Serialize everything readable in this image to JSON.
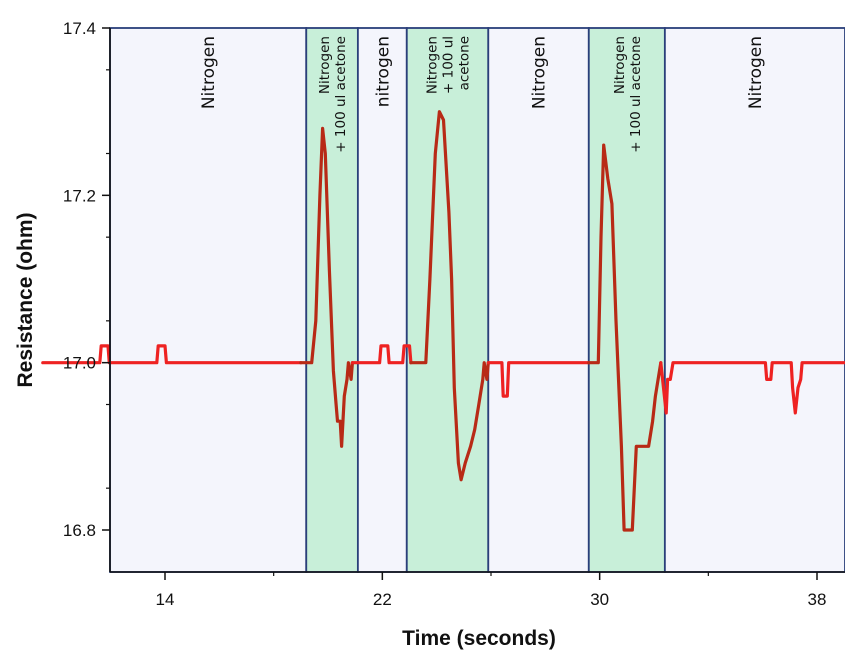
{
  "chart_data": {
    "type": "line",
    "title": "",
    "xlabel": "Time (seconds)",
    "ylabel": "Resistance (ohm)",
    "xlim": [
      9.5,
      40.5
    ],
    "ylim": [
      16.75,
      17.4
    ],
    "x_ticks": [
      14,
      22,
      30,
      38
    ],
    "y_ticks": [
      16.8,
      17.0,
      17.2,
      17.4
    ],
    "grid": false,
    "legend": "none",
    "colors": {
      "nitrogen_bg": "#f4f5fc",
      "acetone_bg": "#c8efd9",
      "border": "#2a3f7a",
      "baseline_line": "#ee2222",
      "pulse_line": "#b82a16"
    },
    "regions": [
      {
        "label": "Nitrogen",
        "x_start": 9.5,
        "x_end": 19.2,
        "kind": "nitrogen"
      },
      {
        "label": "Nitrogen\n+ 100 ul acetone",
        "x_start": 19.2,
        "x_end": 21.1,
        "kind": "acetone"
      },
      {
        "label": "nitrogen",
        "x_start": 21.1,
        "x_end": 22.9,
        "kind": "nitrogen"
      },
      {
        "label": "Nitrogen\n+ 100 ul\nacetone",
        "x_start": 22.9,
        "x_end": 25.9,
        "kind": "acetone"
      },
      {
        "label": "Nitrogen",
        "x_start": 25.9,
        "x_end": 29.6,
        "kind": "nitrogen"
      },
      {
        "label": "Nitrogen\n+ 100 ul acetone",
        "x_start": 29.6,
        "x_end": 32.4,
        "kind": "acetone"
      },
      {
        "label": "Nitrogen",
        "x_start": 32.4,
        "x_end": 40.5,
        "kind": "nitrogen"
      }
    ],
    "series": [
      {
        "values": [
          [
            9.5,
            17.0
          ],
          [
            11.6,
            17.0
          ],
          [
            11.65,
            17.02
          ],
          [
            11.9,
            17.02
          ],
          [
            11.95,
            17.0
          ],
          [
            13.7,
            17.0
          ],
          [
            13.75,
            17.02
          ],
          [
            14.0,
            17.02
          ],
          [
            14.05,
            17.0
          ],
          [
            19.0,
            17.0
          ]
        ],
        "color": "#ee2222"
      },
      {
        "values": [
          [
            19.0,
            17.0
          ],
          [
            19.4,
            17.0
          ],
          [
            19.55,
            17.05
          ],
          [
            19.7,
            17.2
          ],
          [
            19.8,
            17.28
          ],
          [
            19.9,
            17.25
          ],
          [
            20.05,
            17.11
          ],
          [
            20.2,
            16.99
          ],
          [
            20.3,
            16.95
          ],
          [
            20.35,
            16.93
          ],
          [
            20.45,
            16.93
          ],
          [
            20.5,
            16.9
          ],
          [
            20.6,
            16.96
          ],
          [
            20.7,
            16.98
          ],
          [
            20.75,
            17.0
          ],
          [
            20.85,
            16.98
          ],
          [
            20.9,
            17.0
          ]
        ],
        "color": "#b82a16"
      },
      {
        "values": [
          [
            20.9,
            17.0
          ],
          [
            21.9,
            17.0
          ],
          [
            21.95,
            17.02
          ],
          [
            22.2,
            17.02
          ],
          [
            22.25,
            17.0
          ],
          [
            22.75,
            17.0
          ],
          [
            22.8,
            17.02
          ],
          [
            23.0,
            17.02
          ],
          [
            23.05,
            17.0
          ]
        ],
        "color": "#ee2222"
      },
      {
        "values": [
          [
            23.05,
            17.0
          ],
          [
            23.6,
            17.0
          ],
          [
            23.75,
            17.1
          ],
          [
            23.95,
            17.25
          ],
          [
            24.1,
            17.3
          ],
          [
            24.25,
            17.29
          ],
          [
            24.45,
            17.18
          ],
          [
            24.55,
            17.1
          ],
          [
            24.65,
            16.97
          ],
          [
            24.8,
            16.88
          ],
          [
            24.9,
            16.86
          ],
          [
            25.05,
            16.88
          ],
          [
            25.25,
            16.9
          ],
          [
            25.4,
            16.92
          ],
          [
            25.55,
            16.95
          ],
          [
            25.7,
            16.98
          ],
          [
            25.75,
            17.0
          ],
          [
            25.85,
            16.98
          ],
          [
            25.9,
            17.0
          ]
        ],
        "color": "#b82a16"
      },
      {
        "values": [
          [
            25.9,
            17.0
          ],
          [
            26.4,
            17.0
          ],
          [
            26.45,
            16.96
          ],
          [
            26.6,
            16.96
          ],
          [
            26.65,
            17.0
          ],
          [
            29.6,
            17.0
          ]
        ],
        "color": "#ee2222"
      },
      {
        "values": [
          [
            29.6,
            17.0
          ],
          [
            29.95,
            17.0
          ],
          [
            30.05,
            17.15
          ],
          [
            30.15,
            17.26
          ],
          [
            30.3,
            17.22
          ],
          [
            30.45,
            17.19
          ],
          [
            30.6,
            17.05
          ],
          [
            30.8,
            16.9
          ],
          [
            30.9,
            16.8
          ],
          [
            31.2,
            16.8
          ],
          [
            31.35,
            16.9
          ],
          [
            31.6,
            16.9
          ],
          [
            31.8,
            16.9
          ],
          [
            31.95,
            16.93
          ],
          [
            32.05,
            16.96
          ],
          [
            32.15,
            16.98
          ],
          [
            32.25,
            17.0
          ]
        ],
        "color": "#b82a16"
      },
      {
        "values": [
          [
            32.25,
            17.0
          ],
          [
            32.45,
            16.94
          ],
          [
            32.5,
            16.98
          ],
          [
            32.6,
            16.98
          ],
          [
            32.7,
            17.0
          ],
          [
            36.1,
            17.0
          ],
          [
            36.15,
            16.98
          ],
          [
            36.3,
            16.98
          ],
          [
            36.35,
            17.0
          ],
          [
            37.05,
            17.0
          ],
          [
            37.1,
            16.97
          ],
          [
            37.2,
            16.94
          ],
          [
            37.3,
            16.97
          ],
          [
            37.4,
            16.98
          ],
          [
            37.45,
            17.0
          ],
          [
            40.5,
            17.0
          ]
        ],
        "color": "#ee2222"
      }
    ]
  }
}
